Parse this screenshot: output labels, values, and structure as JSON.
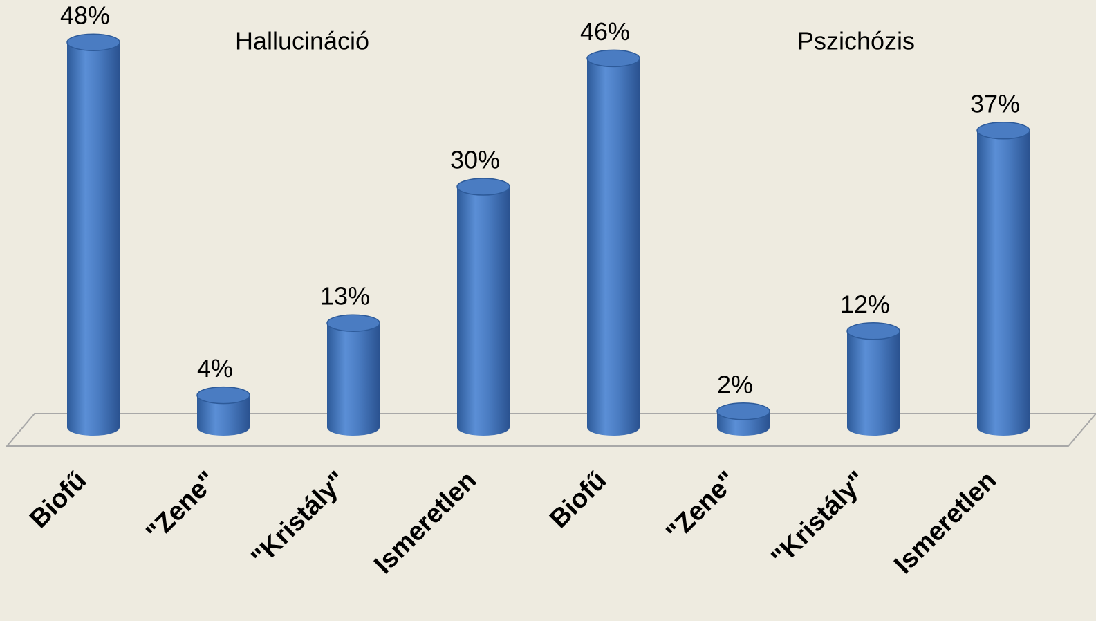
{
  "chart_data": {
    "type": "bar",
    "annotations": [
      "Hallucináció",
      "Pszichózis"
    ],
    "categories": [
      "Biofű",
      "\"Zene\"",
      "\"Kristály\"",
      "Ismeretlen",
      "Biofű",
      "\"Zene\"",
      "\"Kristály\"",
      "Ismeretlen"
    ],
    "values": [
      48,
      4,
      13,
      30,
      46,
      2,
      12,
      37
    ],
    "value_labels": [
      "48%",
      "4%",
      "13%",
      "30%",
      "46%",
      "2%",
      "12%",
      "37%"
    ],
    "color": "#4a7cc2"
  }
}
